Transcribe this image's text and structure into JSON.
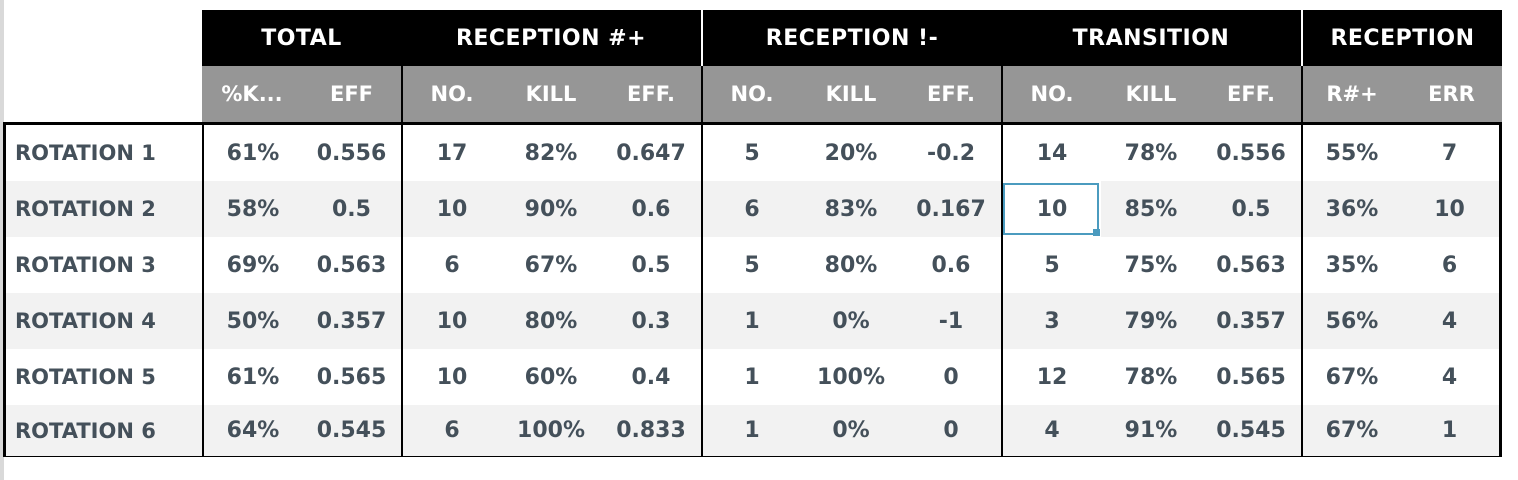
{
  "group_headers": [
    "TOTAL",
    "RECEPTION #+",
    "RECEPTION !-",
    "TRANSITION",
    "RECEPTION"
  ],
  "sub_headers": [
    "%K...",
    "EFF",
    "NO.",
    "KILL",
    "EFF.",
    "NO.",
    "KILL",
    "EFF.",
    "NO.",
    "KILL",
    "EFF.",
    "R#+",
    "ERR"
  ],
  "rows": [
    {
      "label": "ROTATION 1",
      "cells": [
        "61%",
        "0.556",
        "17",
        "82%",
        "0.647",
        "5",
        "20%",
        "-0.2",
        "14",
        "78%",
        "0.556",
        "55%",
        "7"
      ]
    },
    {
      "label": "ROTATION 2",
      "cells": [
        "58%",
        "0.5",
        "10",
        "90%",
        "0.6",
        "6",
        "83%",
        "0.167",
        "10",
        "85%",
        "0.5",
        "36%",
        "10"
      ]
    },
    {
      "label": "ROTATION 3",
      "cells": [
        "69%",
        "0.563",
        "6",
        "67%",
        "0.5",
        "5",
        "80%",
        "0.6",
        "5",
        "75%",
        "0.563",
        "35%",
        "6"
      ]
    },
    {
      "label": "ROTATION 4",
      "cells": [
        "50%",
        "0.357",
        "10",
        "80%",
        "0.3",
        "1",
        "0%",
        "-1",
        "3",
        "79%",
        "0.357",
        "56%",
        "4"
      ]
    },
    {
      "label": "ROTATION 5",
      "cells": [
        "61%",
        "0.565",
        "10",
        "60%",
        "0.4",
        "1",
        "100%",
        "0",
        "12",
        "78%",
        "0.565",
        "67%",
        "4"
      ]
    },
    {
      "label": "ROTATION 6",
      "cells": [
        "64%",
        "0.545",
        "6",
        "100%",
        "0.833",
        "1",
        "0%",
        "0",
        "4",
        "91%",
        "0.545",
        "67%",
        "1"
      ]
    }
  ],
  "selected_cell": {
    "row": 1,
    "column": 8
  },
  "colors": {
    "group_header_bg": "#000000",
    "sub_header_bg": "#969696",
    "stripe_bg": "#f2f2f2",
    "text": "#44505a",
    "selection": "#4b9bbf"
  }
}
